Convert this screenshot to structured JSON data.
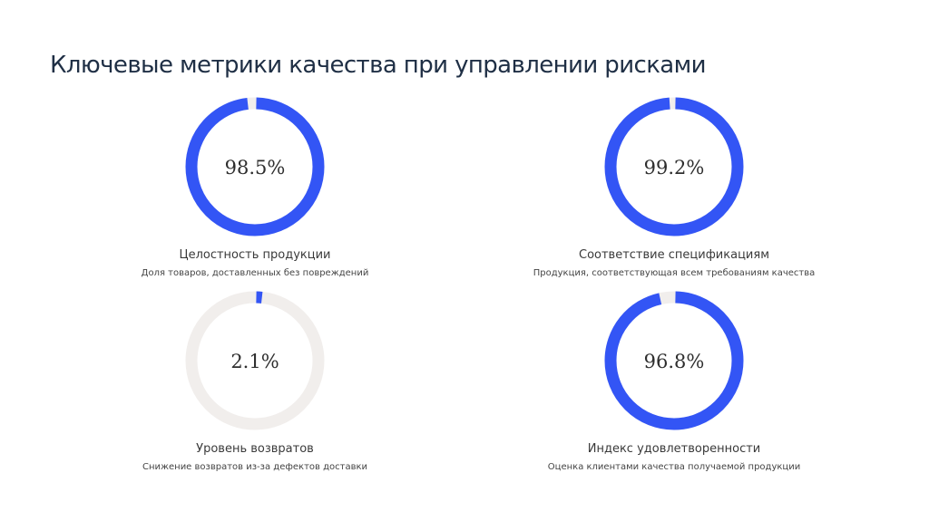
{
  "page": {
    "title": "Ключевые метрики качества при управлении рисками"
  },
  "colors": {
    "accent": "#3355f5",
    "track": "#f1eeec",
    "title": "#1f2f45"
  },
  "chart_data": {
    "type": "pie",
    "subtype": "donut-progress",
    "metrics": [
      {
        "label": "Целостность продукции",
        "description": "Доля товаров, доставленных без повреждений",
        "value": 98.5,
        "display": "98.5%"
      },
      {
        "label": "Соответствие спецификациям",
        "description": "Продукция, соответствующая всем требованиям качества",
        "value": 99.2,
        "display": "99.2%"
      },
      {
        "label": "Уровень возвратов",
        "description": "Снижение возвратов из-за дефектов доставки",
        "value": 2.1,
        "display": "2.1%"
      },
      {
        "label": "Индекс удовлетворенности",
        "description": "Оценка клиентами качества получаемой продукции",
        "value": 96.8,
        "display": "96.8%"
      }
    ]
  }
}
